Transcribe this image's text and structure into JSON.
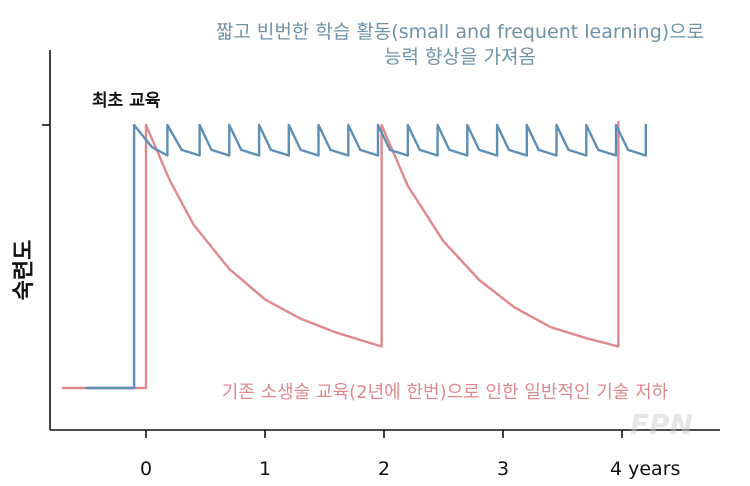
{
  "chart_data": {
    "type": "line",
    "ylabel": "숙련도",
    "xlabel": "",
    "x_ticks": [
      "0",
      "1",
      "2",
      "3",
      "4 years"
    ],
    "x_tick_values": [
      0,
      1,
      2,
      3,
      4
    ],
    "xlim": [
      -0.7,
      4.5
    ],
    "ylim": [
      0,
      1
    ],
    "grid": false,
    "series": [
      {
        "color": "#e0898d",
        "points": [
          [
            -0.7,
            0.05
          ],
          [
            0,
            0.05
          ],
          [
            0,
            1
          ],
          [
            0.2,
            0.8
          ],
          [
            0.4,
            0.64
          ],
          [
            0.7,
            0.48
          ],
          [
            1.0,
            0.37
          ],
          [
            1.3,
            0.3
          ],
          [
            1.6,
            0.25
          ],
          [
            1.98,
            0.2
          ],
          [
            1.98,
            1
          ],
          [
            2.2,
            0.78
          ],
          [
            2.5,
            0.58
          ],
          [
            2.8,
            0.44
          ],
          [
            3.1,
            0.34
          ],
          [
            3.4,
            0.27
          ],
          [
            3.7,
            0.23
          ],
          [
            3.97,
            0.2
          ],
          [
            3.97,
            1.01
          ]
        ]
      },
      {
        "color": "#5d8fb7",
        "points": [
          [
            -0.5,
            0.05
          ],
          [
            -0.1,
            0.05
          ],
          [
            -0.1,
            1
          ],
          [
            0.05,
            0.92
          ],
          [
            0.18,
            0.89
          ],
          [
            0.18,
            1.0
          ],
          [
            0.3,
            0.91
          ],
          [
            0.45,
            0.89
          ],
          [
            0.45,
            1.0
          ],
          [
            0.55,
            0.91
          ],
          [
            0.7,
            0.89
          ],
          [
            0.7,
            1.0
          ],
          [
            0.8,
            0.91
          ],
          [
            0.95,
            0.89
          ],
          [
            0.95,
            1.0
          ],
          [
            1.05,
            0.91
          ],
          [
            1.2,
            0.89
          ],
          [
            1.2,
            1.0
          ],
          [
            1.3,
            0.91
          ],
          [
            1.45,
            0.89
          ],
          [
            1.45,
            1.0
          ],
          [
            1.55,
            0.91
          ],
          [
            1.7,
            0.89
          ],
          [
            1.7,
            1.0
          ],
          [
            1.8,
            0.91
          ],
          [
            1.95,
            0.89
          ],
          [
            1.95,
            1.0
          ],
          [
            2.05,
            0.91
          ],
          [
            2.2,
            0.89
          ],
          [
            2.2,
            1.0
          ],
          [
            2.3,
            0.91
          ],
          [
            2.45,
            0.89
          ],
          [
            2.45,
            1.0
          ],
          [
            2.55,
            0.91
          ],
          [
            2.7,
            0.89
          ],
          [
            2.7,
            1.0
          ],
          [
            2.8,
            0.91
          ],
          [
            2.95,
            0.89
          ],
          [
            2.95,
            1.0
          ],
          [
            3.05,
            0.91
          ],
          [
            3.2,
            0.89
          ],
          [
            3.2,
            1.0
          ],
          [
            3.3,
            0.91
          ],
          [
            3.45,
            0.89
          ],
          [
            3.45,
            1.0
          ],
          [
            3.55,
            0.91
          ],
          [
            3.7,
            0.89
          ],
          [
            3.7,
            1.0
          ],
          [
            3.8,
            0.91
          ],
          [
            3.95,
            0.89
          ],
          [
            3.95,
            1.0
          ],
          [
            4.05,
            0.91
          ],
          [
            4.2,
            0.89
          ],
          [
            4.2,
            1.0
          ]
        ]
      }
    ],
    "annotations": [
      "짧고 빈번한 학습 활동(small and frequent learning)으로",
      "능력 향상을 가져옴",
      "최초 교육",
      "기존 소생술 교육(2년에 한번)으로 인한 일반적인 기술 저하"
    ]
  },
  "watermark": "FPN"
}
